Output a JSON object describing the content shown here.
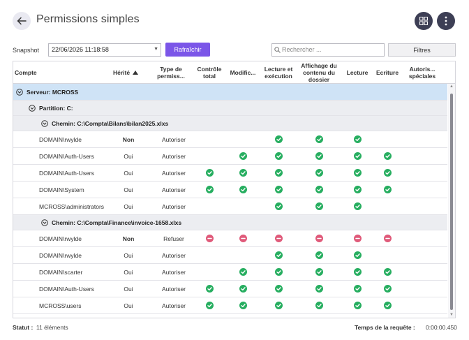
{
  "header": {
    "title": "Permissions simples"
  },
  "toolbar": {
    "snapshot_label": "Snapshot",
    "snapshot_value": "22/06/2026 11:18:58",
    "refresh_label": "Rafraîchir",
    "search_placeholder": "Rechercher ...",
    "filters_label": "Filtres"
  },
  "columns": {
    "compte": "Compte",
    "herite": "Hérité",
    "type": "Type de permiss...",
    "controle": "Contrôle total",
    "modif": "Modific...",
    "lecture_exec": "Lecture et exécution",
    "affichage": "Affichage du contenu du dossier",
    "lecture": "Lecture",
    "ecriture": "Ecriture",
    "speciales": "Autoris... spéciales"
  },
  "groups": {
    "server": "Serveur:  MCROSS",
    "partition": "Partition: C:",
    "path1": "Chemin: C:\\Compta\\Bilans\\bilan2025.xlxs",
    "path2": "Chemin: C:\\Compta\\Finance\\invoice-1658.xlxs"
  },
  "rows": [
    {
      "account": "DOMAIN\\rwylde",
      "inherited": "Non",
      "type": "Autoriser",
      "perms": [
        "",
        "",
        "ok",
        "ok",
        "ok",
        "",
        ""
      ]
    },
    {
      "account": "DOMAIN\\Auth-Users",
      "inherited": "Oui",
      "type": "Autoriser",
      "perms": [
        "",
        "ok",
        "ok",
        "ok",
        "ok",
        "ok",
        ""
      ]
    },
    {
      "account": "DOMAIN\\Auth-Users",
      "inherited": "Oui",
      "type": "Autoriser",
      "perms": [
        "ok",
        "ok",
        "ok",
        "ok",
        "ok",
        "ok",
        ""
      ]
    },
    {
      "account": "DOMAIN\\System",
      "inherited": "Oui",
      "type": "Autoriser",
      "perms": [
        "ok",
        "ok",
        "ok",
        "ok",
        "ok",
        "ok",
        ""
      ]
    },
    {
      "account": "MCROSS\\administrators",
      "inherited": "Oui",
      "type": "Autoriser",
      "perms": [
        "",
        "",
        "ok",
        "ok",
        "ok",
        "",
        ""
      ]
    },
    {
      "account": "DOMAIN\\rwylde",
      "inherited": "Non",
      "type": "Refuser",
      "perms": [
        "no",
        "no",
        "no",
        "no",
        "no",
        "no",
        ""
      ]
    },
    {
      "account": "DOMAIN\\rwylde",
      "inherited": "Oui",
      "type": "Autoriser",
      "perms": [
        "",
        "",
        "ok",
        "ok",
        "ok",
        "",
        ""
      ]
    },
    {
      "account": "DOMAIN\\scarter",
      "inherited": "Oui",
      "type": "Autoriser",
      "perms": [
        "",
        "ok",
        "ok",
        "ok",
        "ok",
        "ok",
        ""
      ]
    },
    {
      "account": "DOMAIN\\Auth-Users",
      "inherited": "Oui",
      "type": "Autoriser",
      "perms": [
        "ok",
        "ok",
        "ok",
        "ok",
        "ok",
        "ok",
        ""
      ]
    },
    {
      "account": "MCROSS\\users",
      "inherited": "Oui",
      "type": "Autoriser",
      "perms": [
        "ok",
        "ok",
        "ok",
        "ok",
        "ok",
        "ok",
        ""
      ]
    }
  ],
  "status": {
    "label": "Statut :",
    "value": "11 éléments",
    "query_label": "Temps de la requête :",
    "query_value": "0:00:00.450"
  },
  "colors": {
    "accent": "#7b56e8",
    "ok": "#27ae60",
    "deny": "#e05a7a",
    "server_row": "#cfe3f6",
    "group_row": "#ecedf1"
  },
  "icons": {
    "back": "arrow-left-icon",
    "grid": "grid-icon",
    "more": "more-vertical-icon",
    "search": "search-icon",
    "expand": "chevron-circle-icon",
    "sort": "sort-asc-icon",
    "allow": "check-circle-icon",
    "deny": "minus-circle-icon"
  }
}
